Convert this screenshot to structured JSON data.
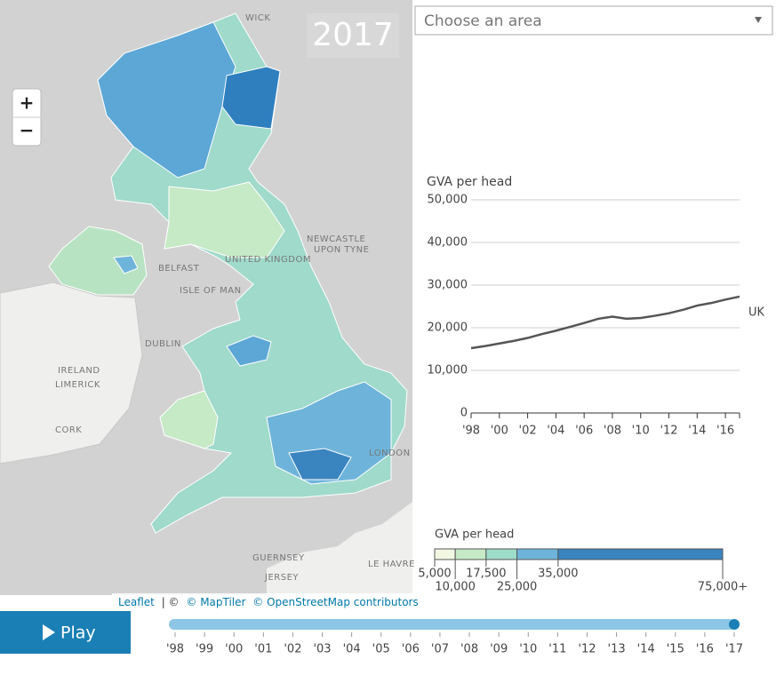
{
  "map": {
    "year": "2017",
    "zoom_in": "+",
    "zoom_out": "−",
    "labels": [
      "WICK",
      "NEWCASTLE",
      "UPON TYNE",
      "BELFAST",
      "UNITED KINGDOM",
      "ISLE OF MAN",
      "DUBLIN",
      "IRELAND",
      "LIMERICK",
      "CORK",
      "LONDON",
      "GUERNSEY",
      "JERSEY",
      "LE HAVRE"
    ],
    "attribution": [
      "Leaflet",
      "| ©",
      "© MapTiler",
      "© OpenStreetMap contributors"
    ]
  },
  "dropdown": {
    "placeholder": "Choose an area"
  },
  "controls": {
    "play": "Play",
    "xlim": [
      1998,
      2017
    ],
    "value": 2017,
    "ticks": [
      {
        "value": 1998,
        "label": "'98"
      },
      {
        "value": 1999,
        "label": "'99"
      },
      {
        "value": 2000,
        "label": "'00"
      },
      {
        "value": 2001,
        "label": "'01"
      },
      {
        "value": 2002,
        "label": "'02"
      },
      {
        "value": 2003,
        "label": "'03"
      },
      {
        "value": 2004,
        "label": "'04"
      },
      {
        "value": 2005,
        "label": "'05"
      },
      {
        "value": 2006,
        "label": "'06"
      },
      {
        "value": 2007,
        "label": "'07"
      },
      {
        "value": 2008,
        "label": "'08"
      },
      {
        "value": 2009,
        "label": "'09"
      },
      {
        "value": 2010,
        "label": "'10"
      },
      {
        "value": 2011,
        "label": "'11"
      },
      {
        "value": 2012,
        "label": "'12"
      },
      {
        "value": 2013,
        "label": "'13"
      },
      {
        "value": 2014,
        "label": "'14"
      },
      {
        "value": 2015,
        "label": "'15"
      },
      {
        "value": 2016,
        "label": "'16"
      },
      {
        "value": 2017,
        "label": "'17"
      }
    ]
  },
  "chart_data": {
    "type": "line",
    "y_label": "GVA per head",
    "x": [
      1998,
      1999,
      2000,
      2001,
      2002,
      2003,
      2004,
      2005,
      2006,
      2007,
      2008,
      2009,
      2010,
      2011,
      2012,
      2013,
      2014,
      2015,
      2016,
      2017
    ],
    "xlim": [
      1998,
      2017
    ],
    "xticks": [
      {
        "value": 1998,
        "label": "'98"
      },
      {
        "value": 2000,
        "label": "'00"
      },
      {
        "value": 2002,
        "label": "'02"
      },
      {
        "value": 2004,
        "label": "'04"
      },
      {
        "value": 2006,
        "label": "'06"
      },
      {
        "value": 2008,
        "label": "'08"
      },
      {
        "value": 2010,
        "label": "'10"
      },
      {
        "value": 2012,
        "label": "'12"
      },
      {
        "value": 2014,
        "label": "'14"
      },
      {
        "value": 2016,
        "label": "'16"
      }
    ],
    "ylim": [
      0,
      50000
    ],
    "yticks": [
      0,
      {
        "value": 10000,
        "label": "10,000"
      },
      {
        "value": 20000,
        "label": "20,000"
      },
      {
        "value": 30000,
        "label": "30,000"
      },
      {
        "value": 40000,
        "label": "40,000"
      },
      {
        "value": 50000,
        "label": "50,000"
      }
    ],
    "grid": true,
    "series": [
      {
        "name": "UK",
        "color": "#555555",
        "values": [
          15200,
          15700,
          16300,
          16900,
          17600,
          18500,
          19300,
          20200,
          21100,
          22100,
          22600,
          22100,
          22300,
          22800,
          23400,
          24200,
          25200,
          25800,
          26600,
          27300
        ]
      }
    ]
  },
  "legend": {
    "title": "GVA per head",
    "xlim": [
      5000,
      75000
    ],
    "breaks": [
      {
        "value": 5000,
        "label": "5,000"
      },
      {
        "value": 10000,
        "label": "10,000"
      },
      {
        "value": 17500,
        "label": "17,500"
      },
      {
        "value": 25000,
        "label": "25,000"
      },
      {
        "value": 35000,
        "label": "35,000"
      },
      {
        "value": 75000,
        "label": "75,000+"
      }
    ],
    "colors": [
      "#f1f7e1",
      "#c6e9c6",
      "#9ddcc9",
      "#6eb4da",
      "#3a84c0"
    ]
  }
}
